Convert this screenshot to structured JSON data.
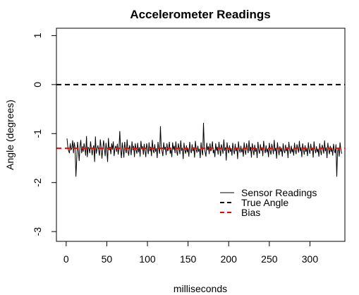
{
  "chart_data": {
    "type": "line",
    "title": "Accelerometer Readings",
    "xlabel": "milliseconds",
    "ylabel": "Angle (degrees)",
    "xlim": [
      -12,
      343
    ],
    "ylim": [
      -3.2,
      1.15
    ],
    "x_ticks": [
      0,
      50,
      100,
      150,
      200,
      250,
      300
    ],
    "y_ticks": [
      1,
      0,
      -1,
      -2,
      -3
    ],
    "grid": false,
    "legend_position": "bottom-right",
    "legend": [
      "Sensor Readings",
      "True Angle",
      "Bias"
    ],
    "series": [
      {
        "name": "Sensor Readings",
        "color": "#000000",
        "style": "solid",
        "x_start": 1,
        "values": [
          -1.1,
          -1.27,
          -1.35,
          -1.4,
          -1.2,
          -1.33,
          -1.3,
          -1.14,
          -1.4,
          -1.18,
          -1.3,
          -1.88,
          -1.52,
          -1.17,
          -1.33,
          -1.56,
          -1.26,
          -1.13,
          -1.4,
          -1.26,
          -1.37,
          -1.2,
          -1.3,
          -1.45,
          -1.05,
          -1.48,
          -1.28,
          -1.3,
          -1.4,
          -1.16,
          -1.31,
          -1.44,
          -1.3,
          -1.24,
          -1.58,
          -1.06,
          -1.41,
          -1.31,
          -1.24,
          -1.34,
          -1.45,
          -1.12,
          -1.28,
          -1.51,
          -1.32,
          -1.14,
          -1.29,
          -1.46,
          -1.19,
          -1.34,
          -1.58,
          -1.09,
          -1.34,
          -1.27,
          -1.42,
          -1.2,
          -1.33,
          -1.16,
          -1.46,
          -1.3,
          -1.25,
          -1.37,
          -1.21,
          -1.43,
          -1.29,
          -0.95,
          -1.33,
          -1.5,
          -1.18,
          -1.32,
          -1.49,
          -1.17,
          -1.33,
          -1.4,
          -1.12,
          -1.36,
          -1.45,
          -1.24,
          -1.3,
          -1.44,
          -1.16,
          -1.34,
          -1.25,
          -1.48,
          -1.2,
          -1.33,
          -1.41,
          -1.19,
          -1.38,
          -1.28,
          -1.47,
          -1.15,
          -1.32,
          -1.26,
          -1.43,
          -1.21,
          -1.35,
          -1.48,
          -1.2,
          -1.3,
          -1.42,
          -1.18,
          -1.36,
          -1.27,
          -1.46,
          -1.13,
          -1.33,
          -1.4,
          -1.22,
          -1.37,
          -1.3,
          -1.5,
          -1.17,
          -1.32,
          -1.41,
          -0.85,
          -1.29,
          -1.36,
          -1.46,
          -1.18,
          -1.33,
          -1.27,
          -1.44,
          -1.2,
          -1.36,
          -1.31,
          -1.17,
          -1.41,
          -1.32,
          -1.48,
          -1.18,
          -1.33,
          -1.25,
          -1.4,
          -1.16,
          -1.36,
          -1.45,
          -1.2,
          -1.31,
          -1.42,
          -1.14,
          -1.35,
          -1.29,
          -1.52,
          -1.19,
          -1.34,
          -1.41,
          -1.24,
          -1.38,
          -1.3,
          -1.47,
          -1.17,
          -1.33,
          -1.4,
          -1.22,
          -1.36,
          -1.28,
          -1.49,
          -1.15,
          -1.32,
          -1.39,
          -1.25,
          -1.37,
          -1.31,
          -1.5,
          -1.18,
          -1.35,
          -1.44,
          -0.78,
          -1.3,
          -1.38,
          -1.47,
          -1.19,
          -1.34,
          -1.26,
          -1.42,
          -1.2,
          -1.36,
          -1.31,
          -1.16,
          -1.4,
          -1.33,
          -1.48,
          -1.2,
          -1.35,
          -1.27,
          -1.43,
          -1.17,
          -1.32,
          -1.46,
          -1.22,
          -1.3,
          -1.41,
          -1.12,
          -1.35,
          -1.28,
          -1.55,
          -1.18,
          -1.33,
          -1.4,
          -1.24,
          -1.37,
          -1.3,
          -1.45,
          -1.19,
          -1.34,
          -1.42,
          -1.21,
          -1.36,
          -1.29,
          -1.52,
          -1.16,
          -1.32,
          -1.39,
          -1.25,
          -1.38,
          -1.31,
          -1.47,
          -1.18,
          -1.35,
          -1.43,
          -1.2,
          -1.3,
          -1.4,
          -1.14,
          -1.36,
          -1.27,
          -1.49,
          -1.2,
          -1.33,
          -1.44,
          -1.23,
          -1.37,
          -1.3,
          -1.5,
          -1.17,
          -1.34,
          -1.41,
          -1.22,
          -1.35,
          -1.28,
          -1.46,
          -1.15,
          -1.32,
          -1.4,
          -1.24,
          -1.38,
          -1.31,
          -1.48,
          -1.19,
          -1.35,
          -1.43,
          -1.21,
          -1.3,
          -1.42,
          -1.13,
          -1.36,
          -1.29,
          -1.51,
          -1.18,
          -1.33,
          -1.44,
          -1.26,
          -1.37,
          -1.3,
          -1.47,
          -1.2,
          -1.34,
          -1.4,
          -1.23,
          -1.36,
          -1.28,
          -1.5,
          -1.17,
          -1.32,
          -1.41,
          -1.25,
          -1.38,
          -1.31,
          -1.45,
          -1.19,
          -1.35,
          -1.42,
          -1.22,
          -1.3,
          -1.39,
          -1.15,
          -1.36,
          -1.28,
          -1.48,
          -1.2,
          -1.33,
          -1.43,
          -1.24,
          -1.37,
          -1.3,
          -1.46,
          -1.18,
          -1.34,
          -1.41,
          -1.21,
          -1.35,
          -1.29,
          -1.49,
          -1.16,
          -1.32,
          -1.4,
          -1.26,
          -1.38,
          -1.31,
          -1.47,
          -1.2,
          -1.35,
          -1.44,
          -1.23,
          -1.3,
          -1.41,
          -1.14,
          -1.36,
          -1.28,
          -1.5,
          -1.19,
          -1.33,
          -1.42,
          -1.25,
          -1.37,
          -1.3,
          -1.45,
          -1.21,
          -1.34,
          -1.4,
          -1.22,
          -1.88,
          -1.36,
          -1.29,
          -1.47,
          -1.18,
          -1.32,
          -1.41
        ]
      },
      {
        "name": "True Angle",
        "color": "#000000",
        "style": "dashed",
        "value": 0
      },
      {
        "name": "Bias",
        "color": "#ff0000",
        "style": "dashed",
        "value": -1.3
      }
    ]
  }
}
